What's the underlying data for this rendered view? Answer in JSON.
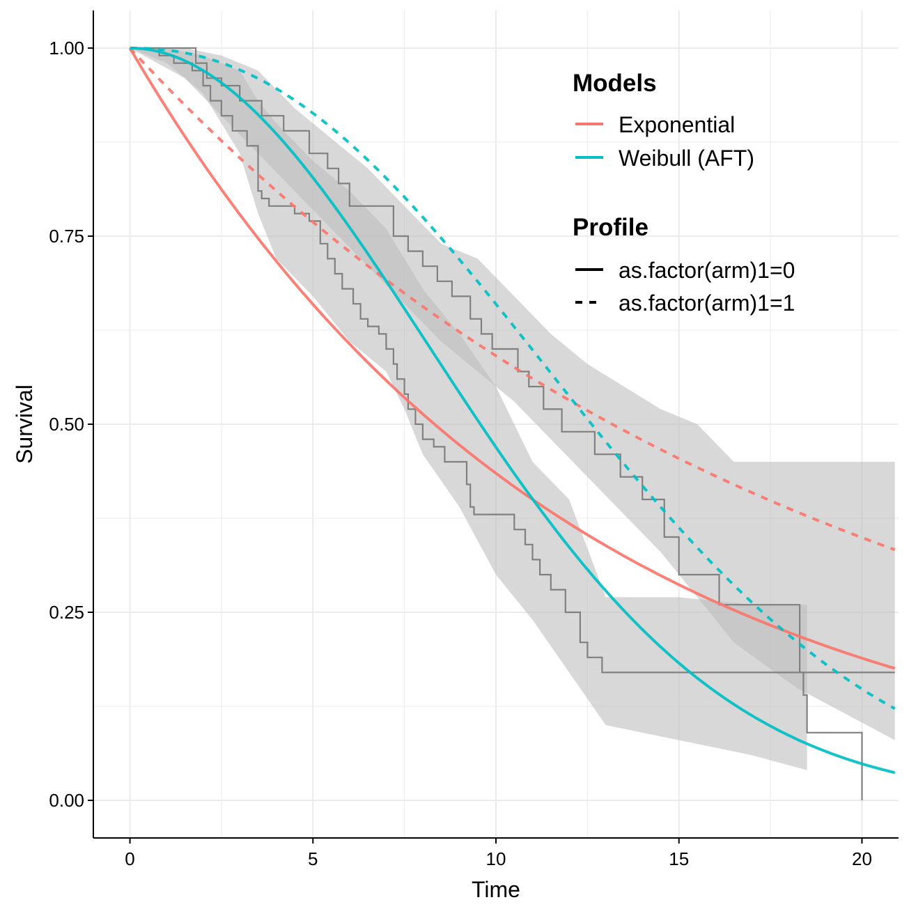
{
  "chart_data": {
    "type": "line",
    "xlabel": "Time",
    "ylabel": "Survival",
    "xlim": [
      -1,
      21
    ],
    "ylim": [
      -0.05,
      1.05
    ],
    "x_ticks": [
      0,
      5,
      10,
      15,
      20
    ],
    "x_tick_labels": [
      "0",
      "5",
      "10",
      "15",
      "20"
    ],
    "y_ticks": [
      0,
      0.25,
      0.5,
      0.75,
      1
    ],
    "y_tick_labels": [
      "0.00",
      "0.25",
      "0.50",
      "0.75",
      "1.00"
    ],
    "grid": true,
    "legend": {
      "position": "top-right",
      "models_title": "Models",
      "models": [
        {
          "label": "Exponential",
          "color": "#F8766D"
        },
        {
          "label": "Weibull (AFT)",
          "color": "#00BFC4"
        }
      ],
      "profile_title": "Profile",
      "profiles": [
        {
          "label": "as.factor(arm)1=0",
          "linetype": "solid"
        },
        {
          "label": "as.factor(arm)1=1",
          "linetype": "dashed"
        }
      ]
    },
    "series": [
      {
        "model": "Exponential",
        "profile": "as.factor(arm)1=0",
        "color": "#F8766D",
        "linetype": "solid",
        "x_max": 20.9,
        "rate": 0.0833
      },
      {
        "model": "Exponential",
        "profile": "as.factor(arm)1=1",
        "color": "#F8766D",
        "linetype": "dashed",
        "x_max": 20.9,
        "rate": 0.0526
      },
      {
        "model": "Weibull (AFT)",
        "profile": "as.factor(arm)1=0",
        "color": "#00BFC4",
        "linetype": "solid",
        "x_max": 20.9,
        "scale": 11.5,
        "shape": 2.0
      },
      {
        "model": "Weibull (AFT)",
        "profile": "as.factor(arm)1=1",
        "color": "#00BFC4",
        "linetype": "dashed",
        "x_max": 20.9,
        "scale": 14.9,
        "shape": 2.2
      }
    ],
    "km_curves": [
      {
        "profile": "as.factor(arm)1=0",
        "color": "#808080",
        "x": [
          0,
          0.8,
          1.2,
          1.7,
          2.0,
          2.2,
          2.5,
          2.8,
          3.2,
          3.5,
          3.6,
          3.8,
          4.2,
          4.5,
          4.9,
          5.2,
          5.4,
          5.6,
          5.8,
          6.1,
          6.3,
          6.5,
          6.8,
          7.0,
          7.2,
          7.3,
          7.5,
          7.6,
          7.8,
          8.0,
          8.3,
          8.6,
          9.2,
          9.3,
          9.4,
          9.8,
          10.5,
          10.8,
          11.0,
          11.2,
          11.5,
          11.9,
          12.3,
          12.5,
          12.9,
          18.4,
          18.5,
          20.0
        ],
        "y": [
          1,
          0.99,
          0.98,
          0.97,
          0.95,
          0.93,
          0.91,
          0.89,
          0.87,
          0.81,
          0.8,
          0.79,
          0.79,
          0.78,
          0.77,
          0.74,
          0.72,
          0.7,
          0.68,
          0.66,
          0.64,
          0.63,
          0.62,
          0.6,
          0.58,
          0.56,
          0.54,
          0.52,
          0.5,
          0.48,
          0.47,
          0.45,
          0.42,
          0.39,
          0.38,
          0.38,
          0.36,
          0.34,
          0.32,
          0.3,
          0.28,
          0.25,
          0.21,
          0.19,
          0.17,
          0.14,
          0.09,
          0
        ]
      },
      {
        "profile": "as.factor(arm)1=1",
        "color": "#808080",
        "x": [
          0,
          1.8,
          2.1,
          2.5,
          3.0,
          3.6,
          4.2,
          4.9,
          5.4,
          5.7,
          6.0,
          7.2,
          7.6,
          8.0,
          8.4,
          8.8,
          9.3,
          9.6,
          9.9,
          10.6,
          10.9,
          11.3,
          11.8,
          12.7,
          13.4,
          14.0,
          14.6,
          15.0,
          16.1,
          18.2,
          18.3,
          20.9
        ],
        "y": [
          1,
          0.98,
          0.96,
          0.95,
          0.93,
          0.91,
          0.89,
          0.86,
          0.84,
          0.82,
          0.79,
          0.75,
          0.73,
          0.71,
          0.69,
          0.67,
          0.64,
          0.62,
          0.6,
          0.57,
          0.55,
          0.52,
          0.49,
          0.46,
          0.43,
          0.4,
          0.35,
          0.3,
          0.26,
          0.26,
          0.17,
          0.17
        ]
      }
    ],
    "confidence_bands": [
      {
        "profile": "as.factor(arm)1=0",
        "fill": "#BEBEBE",
        "x": [
          0,
          1,
          2,
          3,
          3.5,
          4,
          5,
          6,
          7,
          7.5,
          8,
          9,
          10,
          11,
          12,
          13,
          15,
          17,
          18.5
        ],
        "upper": [
          1,
          1,
          0.99,
          0.97,
          0.93,
          0.9,
          0.85,
          0.81,
          0.76,
          0.72,
          0.68,
          0.62,
          0.55,
          0.45,
          0.4,
          0.27,
          0.27,
          0.26,
          0.26
        ],
        "lower": [
          1,
          0.98,
          0.94,
          0.86,
          0.78,
          0.72,
          0.67,
          0.61,
          0.57,
          0.52,
          0.46,
          0.39,
          0.3,
          0.24,
          0.17,
          0.1,
          0.08,
          0.06,
          0.04
        ]
      },
      {
        "profile": "as.factor(arm)1=1",
        "fill": "#BEBEBE",
        "x": [
          0,
          1.5,
          2.5,
          3.5,
          4.5,
          5.5,
          6.5,
          7.5,
          8.5,
          9.5,
          10.5,
          11.5,
          12.5,
          13.5,
          14.5,
          15.5,
          16.5,
          18.2,
          20.9
        ],
        "upper": [
          1,
          1,
          0.99,
          0.97,
          0.92,
          0.88,
          0.84,
          0.79,
          0.74,
          0.72,
          0.67,
          0.62,
          0.58,
          0.55,
          0.52,
          0.5,
          0.45,
          0.45,
          0.45
        ],
        "lower": [
          1,
          0.96,
          0.91,
          0.86,
          0.81,
          0.76,
          0.71,
          0.66,
          0.61,
          0.57,
          0.53,
          0.48,
          0.43,
          0.38,
          0.33,
          0.27,
          0.21,
          0.15,
          0.08
        ]
      }
    ]
  }
}
